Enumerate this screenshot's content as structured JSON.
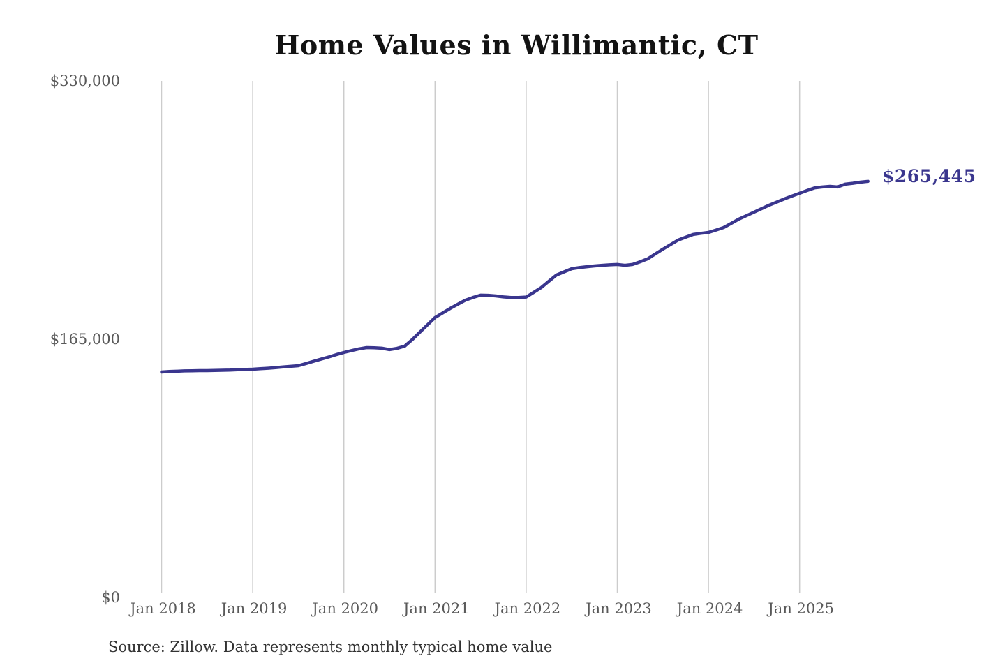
{
  "chart_data": {
    "type": "line",
    "title": "Home Values in Willimantic, CT",
    "source": "Source: Zillow. Data represents monthly typical home value",
    "end_label": "$265,445",
    "latest_value": 265445,
    "x_tick_labels": [
      "Jan 2018",
      "Jan 2019",
      "Jan 2020",
      "Jan 2021",
      "Jan 2022",
      "Jan 2023",
      "Jan 2024",
      "Jan 2025"
    ],
    "y_ticks": [
      {
        "label": "$0",
        "value": 0
      },
      {
        "label": "$165,000",
        "value": 165000
      },
      {
        "label": "$330,000",
        "value": 330000
      }
    ],
    "ylim": [
      0,
      330000
    ],
    "grid": "vertical-only",
    "legend": "none",
    "x_start_label": "Jan 2018",
    "cadence": "monthly",
    "line_color": "#3a368e",
    "series": [
      {
        "name": "Monthly typical home value",
        "unit": "USD",
        "values": [
          143600,
          143900,
          144100,
          144300,
          144400,
          144500,
          144500,
          144600,
          144700,
          144800,
          145000,
          145200,
          145400,
          145700,
          146000,
          146400,
          146800,
          147200,
          147600,
          149000,
          150400,
          151800,
          153200,
          154700,
          156100,
          157300,
          158400,
          159200,
          159100,
          158800,
          157900,
          158700,
          160100,
          164300,
          169000,
          173700,
          178400,
          181300,
          184200,
          186900,
          189500,
          191200,
          192700,
          192600,
          192200,
          191600,
          191200,
          191200,
          191500,
          194500,
          197600,
          201600,
          205600,
          207600,
          209600,
          210300,
          210900,
          211400,
          211800,
          212100,
          212300,
          211800,
          212300,
          214000,
          215900,
          219000,
          222100,
          225000,
          227900,
          229700,
          231500,
          232200,
          232800,
          234300,
          235900,
          238600,
          241300,
          243500,
          245700,
          248000,
          250200,
          252200,
          254200,
          256000,
          257800,
          259600,
          261300,
          261800,
          262200,
          261800,
          263600,
          264200,
          264900,
          265445
        ]
      }
    ]
  },
  "colors": {
    "background": "#ffffff",
    "gridline": "#cccccc",
    "axis_label": "#595959",
    "title": "#131313",
    "source_text": "#333333",
    "accent": "#3a368e"
  }
}
